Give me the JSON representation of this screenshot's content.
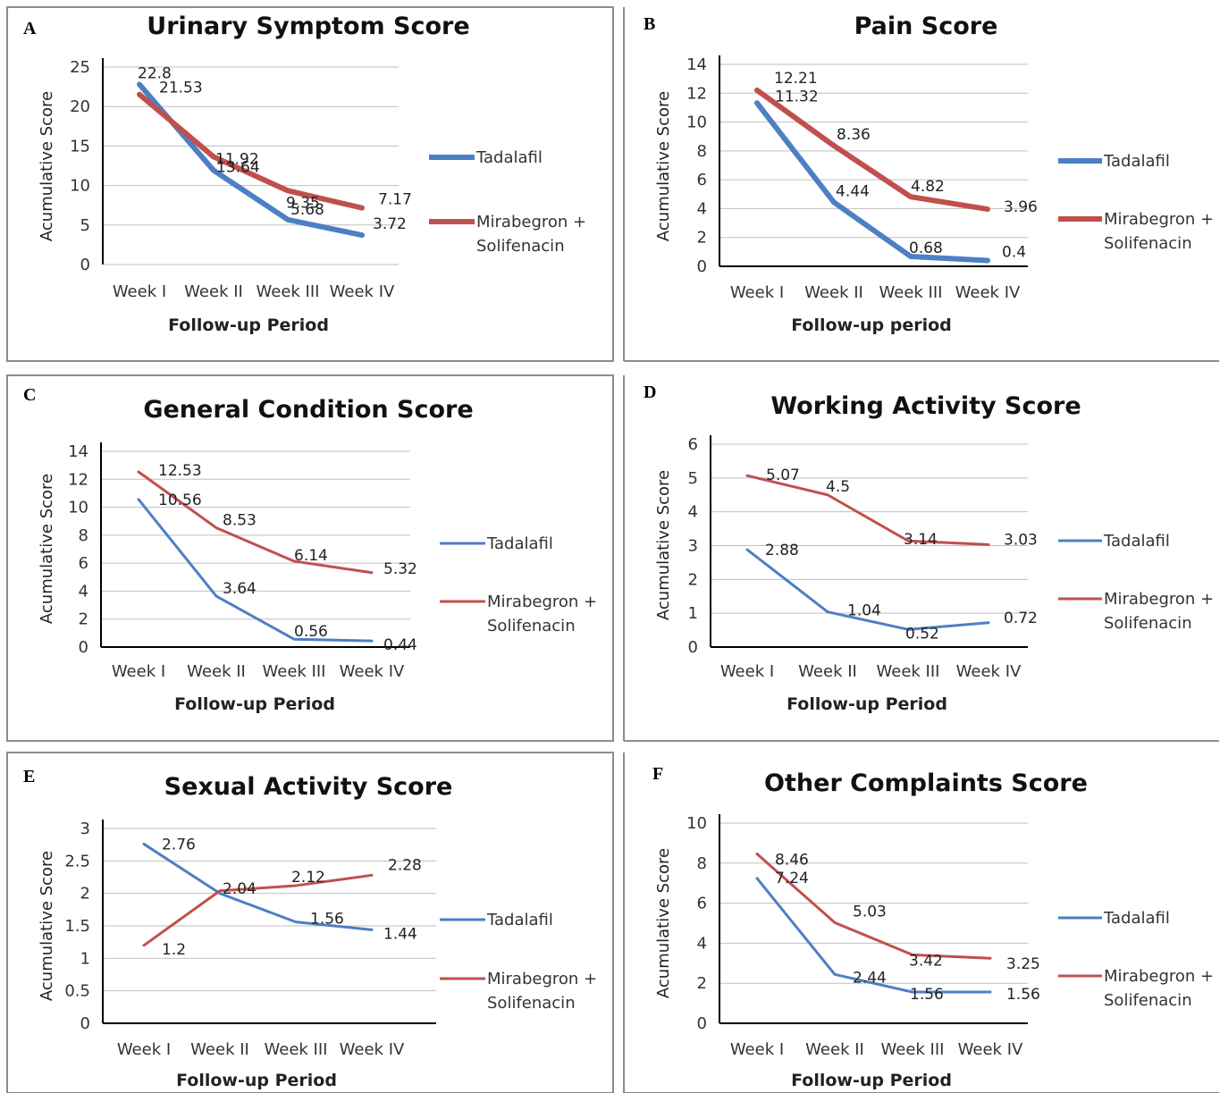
{
  "colors": {
    "tadalafil": "#4d7fc4",
    "mirabegron": "#c0504d",
    "grid": "#bfbfbf",
    "axis": "#000000",
    "frame": "#8c8c8c"
  },
  "chart_data": [
    {
      "type": "line",
      "panel": "A",
      "title": "Urinary Symptom Score",
      "xlabel": "Follow-up Period",
      "ylabel": "Acumulative Score",
      "categories": [
        "Week I",
        "Week II",
        "Week III",
        "Week IV"
      ],
      "ylim": [
        0,
        25
      ],
      "yticks": [
        "0",
        "5",
        "10",
        "15",
        "20",
        "25"
      ],
      "grid": true,
      "legend_position": "right",
      "series": [
        {
          "name": "Tadalafil",
          "values": [
            22.8,
            11.92,
            5.68,
            3.72
          ],
          "labels": [
            "22.8",
            "11.92",
            "5.68",
            "3.72"
          ]
        },
        {
          "name": "Mirabegron + Solifenacin",
          "values": [
            21.53,
            13.64,
            9.35,
            7.17
          ],
          "labels": [
            "21.53",
            "13.64",
            "9.35",
            "7.17"
          ]
        }
      ]
    },
    {
      "type": "line",
      "panel": "B",
      "title": "Pain Score",
      "xlabel": "Follow-up period",
      "ylabel": "Acumulative Score",
      "categories": [
        "Week I",
        "Week II",
        "Week III",
        "Week IV"
      ],
      "ylim": [
        0,
        14
      ],
      "yticks": [
        "0",
        "2",
        "4",
        "6",
        "8",
        "10",
        "12",
        "14"
      ],
      "grid": true,
      "legend_position": "right",
      "series": [
        {
          "name": "Tadalafil",
          "values": [
            11.32,
            4.44,
            0.68,
            0.4
          ],
          "labels": [
            "11.32",
            "4.44",
            "0.68",
            "0.4"
          ]
        },
        {
          "name": "Mirabegron + Solifenacin",
          "values": [
            12.21,
            8.36,
            4.82,
            3.96
          ],
          "labels": [
            "12.21",
            "8.36",
            "4.82",
            "3.96"
          ]
        }
      ]
    },
    {
      "type": "line",
      "panel": "C",
      "title": "General Condition Score",
      "xlabel": "Follow-up Period",
      "ylabel": "Acumulative Score",
      "categories": [
        "Week I",
        "Week II",
        "Week III",
        "Week IV"
      ],
      "ylim": [
        0,
        14
      ],
      "yticks": [
        "0",
        "2",
        "4",
        "6",
        "8",
        "10",
        "12",
        "14"
      ],
      "grid": true,
      "legend_position": "right",
      "series": [
        {
          "name": "Tadalafil",
          "values": [
            10.56,
            3.64,
            0.56,
            0.44
          ],
          "labels": [
            "10.56",
            "3.64",
            "0.56",
            "0.44"
          ]
        },
        {
          "name": "Mirabegron + Solifenacin",
          "values": [
            12.53,
            8.53,
            6.14,
            5.32
          ],
          "labels": [
            "12.53",
            "8.53",
            "6.14",
            "5.32"
          ]
        }
      ]
    },
    {
      "type": "line",
      "panel": "D",
      "title": "Working Activity Score",
      "xlabel": "Follow-up Period",
      "ylabel": "Acumulative Score",
      "categories": [
        "Week I",
        "Week II",
        "Week III",
        "Week IV"
      ],
      "ylim": [
        0,
        6
      ],
      "yticks": [
        "0",
        "1",
        "2",
        "3",
        "4",
        "5",
        "6"
      ],
      "grid": true,
      "legend_position": "right",
      "series": [
        {
          "name": "Tadalafil",
          "values": [
            2.88,
            1.04,
            0.52,
            0.72
          ],
          "labels": [
            "2.88",
            "1.04",
            "0.52",
            "0.72"
          ]
        },
        {
          "name": "Mirabegron + Solifenacin",
          "values": [
            5.07,
            4.5,
            3.14,
            3.03
          ],
          "labels": [
            "5.07",
            "4.5",
            "3.14",
            "3.03"
          ]
        }
      ]
    },
    {
      "type": "line",
      "panel": "E",
      "title": "Sexual Activity Score",
      "xlabel": "Follow-up Period",
      "ylabel": "Acumulative Score",
      "categories": [
        "Week I",
        "Week II",
        "Week III",
        "Week IV"
      ],
      "ylim": [
        0,
        3
      ],
      "yticks": [
        "0",
        "0.5",
        "1",
        "1.5",
        "2",
        "2.5",
        "3"
      ],
      "grid": true,
      "legend_position": "right",
      "series": [
        {
          "name": "Tadalafil",
          "values": [
            2.76,
            2.0,
            1.56,
            1.44
          ],
          "labels": [
            "2.76",
            "",
            "1.56",
            "1.44"
          ]
        },
        {
          "name": "Mirabegron + Solifenacin",
          "values": [
            1.2,
            2.04,
            2.12,
            2.28
          ],
          "labels": [
            "1.2",
            "2.04",
            "2.12",
            "2.28"
          ]
        }
      ]
    },
    {
      "type": "line",
      "panel": "F",
      "title": "Other Complaints Score",
      "xlabel": "Follow-up Period",
      "ylabel": "Acumulative Score",
      "categories": [
        "Week I",
        "Week II",
        "Week III",
        "Week IV"
      ],
      "ylim": [
        0,
        10
      ],
      "yticks": [
        "0",
        "2",
        "4",
        "6",
        "8",
        "10"
      ],
      "grid": true,
      "legend_position": "right",
      "series": [
        {
          "name": "Tadalafil",
          "values": [
            7.24,
            2.44,
            1.56,
            1.56
          ],
          "labels": [
            "7.24",
            "2.44",
            "1.56",
            "1.56"
          ]
        },
        {
          "name": "Mirabegron + Solifenacin",
          "values": [
            8.46,
            5.03,
            3.42,
            3.25
          ],
          "labels": [
            "8.46",
            "5.03",
            "3.42",
            "3.25"
          ]
        }
      ]
    }
  ],
  "legend_text": {
    "tadalafil": [
      "Tadalafil"
    ],
    "mirabegron": [
      "Mirabegron +",
      "Solifenacin"
    ]
  }
}
